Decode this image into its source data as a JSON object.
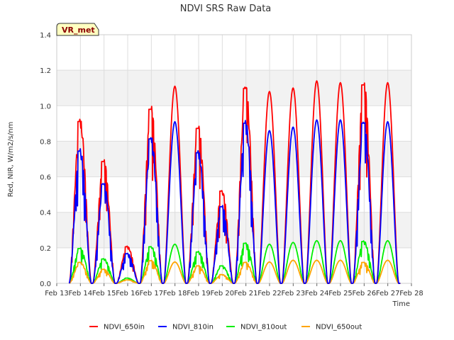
{
  "chart_data": {
    "type": "line",
    "title": "NDVI SRS Raw Data",
    "xlabel": "Time",
    "ylabel": "Red, NIR, W/m2/s/nm",
    "badge": "VR_met",
    "xlim": [
      13,
      28
    ],
    "ylim": [
      0,
      1.4
    ],
    "yticks": [
      0.0,
      0.2,
      0.4,
      0.6,
      0.8,
      1.0,
      1.2,
      1.4
    ],
    "ytick_labels": [
      "0.0",
      "0.2",
      "0.4",
      "0.6",
      "0.8",
      "1.0",
      "1.2",
      "1.4"
    ],
    "xticks": [
      13,
      14,
      15,
      16,
      17,
      18,
      19,
      20,
      21,
      22,
      23,
      24,
      25,
      26,
      27,
      28
    ],
    "xtick_labels": [
      "Feb 13",
      "Feb 14",
      "Feb 15",
      "Feb 16",
      "Feb 17",
      "Feb 18",
      "Feb 19",
      "Feb 20",
      "Feb 21",
      "Feb 22",
      "Feb 23",
      "Feb 24",
      "Feb 25",
      "Feb 26",
      "Feb 27",
      "Feb 28"
    ],
    "days": [
      14,
      15,
      16,
      17,
      18,
      19,
      20,
      21,
      22,
      23,
      24,
      25,
      26,
      27
    ],
    "series": [
      {
        "name": "NDVI_650in",
        "color": "#ff0000",
        "daily_peaks": [
          0.93,
          0.7,
          0.21,
          1.0,
          1.11,
          0.89,
          0.53,
          1.12,
          1.08,
          1.1,
          1.14,
          1.13,
          1.14,
          1.13
        ]
      },
      {
        "name": "NDVI_810in",
        "color": "#0000ff",
        "daily_peaks": [
          0.76,
          0.57,
          0.17,
          0.83,
          0.91,
          0.75,
          0.44,
          0.92,
          0.86,
          0.88,
          0.92,
          0.92,
          0.92,
          0.91
        ]
      },
      {
        "name": "NDVI_810out",
        "color": "#00ee00",
        "daily_peaks": [
          0.2,
          0.14,
          0.03,
          0.21,
          0.22,
          0.18,
          0.1,
          0.23,
          0.22,
          0.23,
          0.24,
          0.24,
          0.24,
          0.24
        ]
      },
      {
        "name": "NDVI_650out",
        "color": "#ffa500",
        "daily_peaks": [
          0.12,
          0.08,
          0.02,
          0.13,
          0.12,
          0.1,
          0.05,
          0.12,
          0.12,
          0.13,
          0.13,
          0.13,
          0.12,
          0.13
        ]
      }
    ],
    "legend_position": "bottom"
  }
}
